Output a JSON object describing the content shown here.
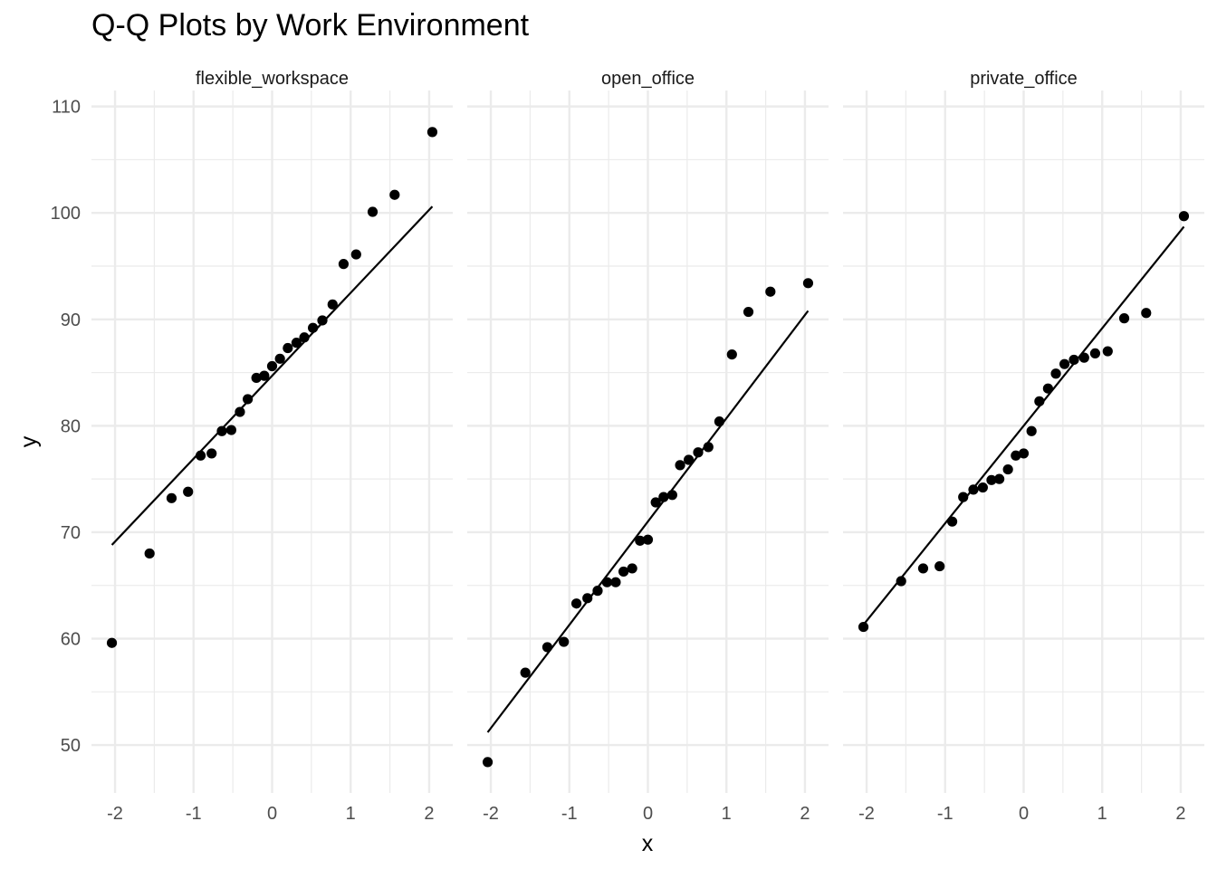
{
  "chart_data": {
    "type": "scatter",
    "title": "Q-Q Plots by Work Environment",
    "xlabel": "x",
    "ylabel": "y",
    "xlim": [
      -2.3,
      2.3
    ],
    "ylim": [
      45.5,
      111.5
    ],
    "x_ticks": [
      -2,
      -1,
      0,
      1,
      2
    ],
    "y_ticks": [
      50,
      60,
      70,
      80,
      90,
      100,
      110
    ],
    "x_tick_labels": [
      "-2",
      "-1",
      "0",
      "1",
      "2"
    ],
    "y_tick_labels": [
      "50",
      "60",
      "70",
      "80",
      "90",
      "100",
      "110"
    ],
    "grid": true,
    "point_color": "#000000",
    "line_color": "#000000",
    "grid_color": "#ebebeb",
    "panels": [
      {
        "name": "flexible_workspace",
        "reference_line": [
          [
            -2.04,
            68.8
          ],
          [
            2.04,
            100.6
          ]
        ],
        "points": [
          [
            -2.04,
            59.6
          ],
          [
            -1.56,
            68.0
          ],
          [
            -1.28,
            73.2
          ],
          [
            -1.07,
            73.8
          ],
          [
            -0.91,
            77.2
          ],
          [
            -0.77,
            77.4
          ],
          [
            -0.64,
            79.5
          ],
          [
            -0.52,
            79.6
          ],
          [
            -0.41,
            81.3
          ],
          [
            -0.31,
            82.5
          ],
          [
            -0.2,
            84.5
          ],
          [
            -0.1,
            84.7
          ],
          [
            0.0,
            85.6
          ],
          [
            0.1,
            86.3
          ],
          [
            0.2,
            87.3
          ],
          [
            0.31,
            87.8
          ],
          [
            0.41,
            88.3
          ],
          [
            0.52,
            89.2
          ],
          [
            0.64,
            89.9
          ],
          [
            0.77,
            91.4
          ],
          [
            0.91,
            95.2
          ],
          [
            1.07,
            96.1
          ],
          [
            1.28,
            100.1
          ],
          [
            1.56,
            101.7
          ],
          [
            2.04,
            107.6
          ]
        ]
      },
      {
        "name": "open_office",
        "reference_line": [
          [
            -2.04,
            51.2
          ],
          [
            2.04,
            90.8
          ]
        ],
        "points": [
          [
            -2.04,
            48.4
          ],
          [
            -1.56,
            56.8
          ],
          [
            -1.28,
            59.2
          ],
          [
            -1.07,
            59.7
          ],
          [
            -0.91,
            63.3
          ],
          [
            -0.77,
            63.8
          ],
          [
            -0.64,
            64.5
          ],
          [
            -0.52,
            65.3
          ],
          [
            -0.41,
            65.3
          ],
          [
            -0.31,
            66.3
          ],
          [
            -0.2,
            66.6
          ],
          [
            -0.1,
            69.2
          ],
          [
            0.0,
            69.3
          ],
          [
            0.1,
            72.8
          ],
          [
            0.2,
            73.3
          ],
          [
            0.31,
            73.5
          ],
          [
            0.41,
            76.3
          ],
          [
            0.52,
            76.8
          ],
          [
            0.64,
            77.5
          ],
          [
            0.77,
            78.0
          ],
          [
            0.91,
            80.4
          ],
          [
            1.07,
            86.7
          ],
          [
            1.28,
            90.7
          ],
          [
            1.56,
            92.6
          ],
          [
            2.04,
            93.4
          ]
        ]
      },
      {
        "name": "private_office",
        "reference_line": [
          [
            -2.04,
            61.3
          ],
          [
            2.04,
            98.7
          ]
        ],
        "points": [
          [
            -2.04,
            61.1
          ],
          [
            -1.56,
            65.4
          ],
          [
            -1.28,
            66.6
          ],
          [
            -1.07,
            66.8
          ],
          [
            -0.91,
            71.0
          ],
          [
            -0.77,
            73.3
          ],
          [
            -0.64,
            74.0
          ],
          [
            -0.52,
            74.2
          ],
          [
            -0.41,
            74.9
          ],
          [
            -0.31,
            75.0
          ],
          [
            -0.2,
            75.9
          ],
          [
            -0.1,
            77.2
          ],
          [
            0.0,
            77.4
          ],
          [
            0.1,
            79.5
          ],
          [
            0.2,
            82.3
          ],
          [
            0.31,
            83.5
          ],
          [
            0.41,
            84.9
          ],
          [
            0.52,
            85.8
          ],
          [
            0.64,
            86.2
          ],
          [
            0.77,
            86.4
          ],
          [
            0.91,
            86.8
          ],
          [
            1.07,
            87.0
          ],
          [
            1.28,
            90.1
          ],
          [
            1.56,
            90.6
          ],
          [
            2.04,
            99.7
          ]
        ]
      }
    ]
  }
}
